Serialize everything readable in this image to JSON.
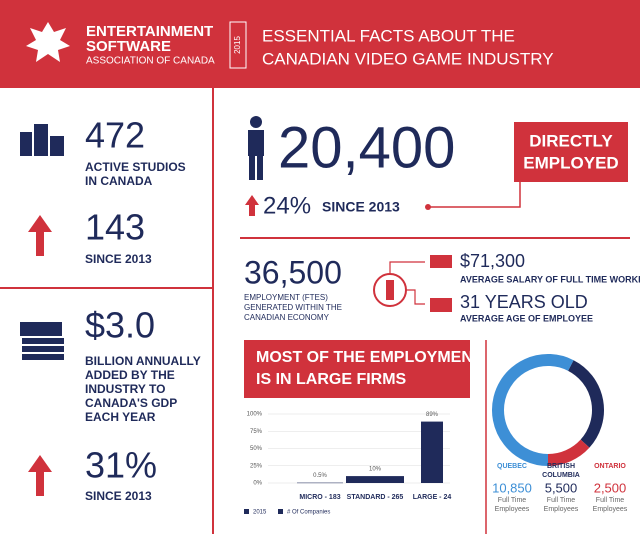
{
  "header": {
    "org_line1": "ENTERTAINMENT",
    "org_line2": "SOFTWARE",
    "org_line3": "ASSOCIATION OF CANADA",
    "year": "2015",
    "title_line1": "ESSENTIAL FACTS ABOUT THE",
    "title_line2": "CANADIAN VIDEO GAME INDUSTRY"
  },
  "studios": {
    "value": "472",
    "label_line1": "ACTIVE STUDIOS",
    "label_line2": "IN CANADA"
  },
  "studio_growth": {
    "value": "143",
    "label": "SINCE 2013"
  },
  "gdp": {
    "value": "$3.0",
    "lines": [
      "BILLION ANNUALLY",
      "ADDED BY THE",
      "INDUSTRY TO",
      "CANADA'S GDP",
      "EACH YEAR"
    ]
  },
  "gdp_growth": {
    "value": "31%",
    "label": "SINCE 2013"
  },
  "direct": {
    "value": "20,400",
    "label_line1": "DIRECTLY",
    "label_line2": "EMPLOYED",
    "growth_value": "24%",
    "growth_label": "SINCE 2013"
  },
  "indirect": {
    "value": "36,500",
    "lines": [
      "EMPLOYMENT (FTES)",
      "GENERATED WITHIN THE",
      "CANADIAN ECONOMY"
    ]
  },
  "salary": {
    "value": "$71,300",
    "label": "AVERAGE SALARY OF FULL TIME WORKERS"
  },
  "age": {
    "value": "31 YEARS OLD",
    "label": "AVERAGE AGE OF EMPLOYEE"
  },
  "chart_data": [
    {
      "type": "bar",
      "title_line1": "MOST OF THE EMPLOYMENT",
      "title_line2": "IS IN LARGE FIRMS",
      "categories": [
        "MICRO - 183",
        "STANDARD - 265",
        "LARGE - 24"
      ],
      "values": [
        0.5,
        10,
        89
      ],
      "value_labels": [
        "0.5%",
        "10%",
        "89%"
      ],
      "color": "#1f2a5a",
      "ylim": [
        0,
        100
      ],
      "yticks": [
        {
          "value": 0,
          "label": "0%"
        },
        {
          "value": 25,
          "label": "25%"
        },
        {
          "value": 50,
          "label": "50%"
        },
        {
          "value": 75,
          "label": "75%"
        },
        {
          "value": 100,
          "label": "100%"
        }
      ],
      "legend": [
        "2015",
        "# Of Companies"
      ]
    },
    {
      "type": "pie",
      "categories": [
        "QUEBEC",
        "BRITISH",
        "ONTARIO"
      ],
      "categories_line2": [
        null,
        "COLUMBIA",
        null
      ],
      "values": [
        10850,
        5500,
        2500
      ],
      "value_labels": [
        "10,850",
        "5,500",
        "2,500"
      ],
      "colors": [
        "#3d8fd6",
        "#1f2a5a",
        "#d0323c"
      ],
      "unit_line1": "Full Time",
      "unit_line2": "Employees"
    }
  ]
}
